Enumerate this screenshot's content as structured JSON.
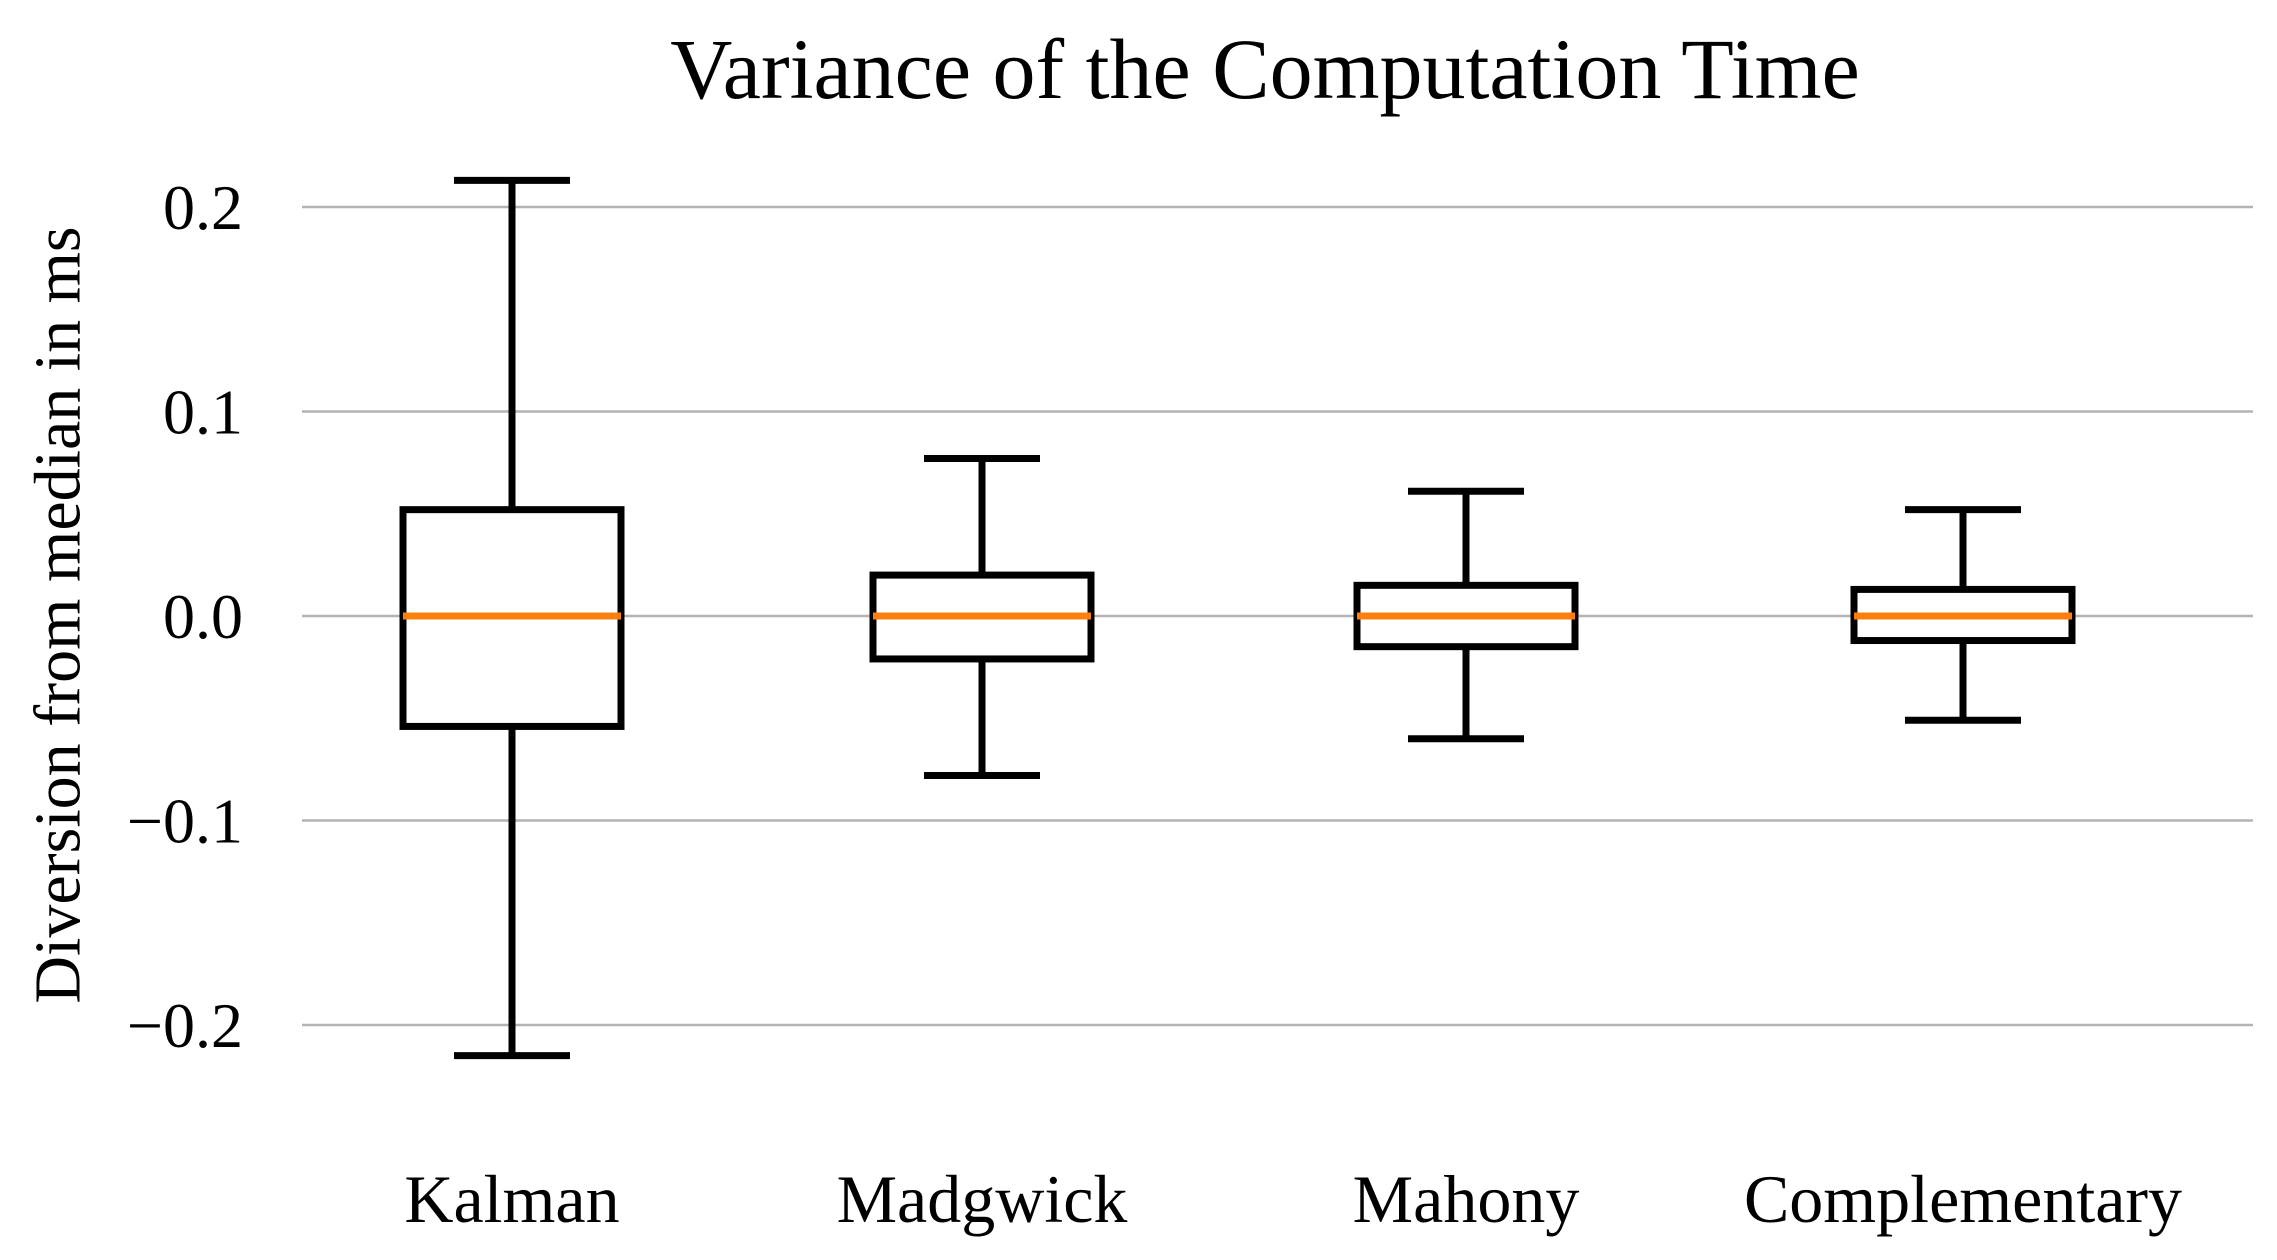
{
  "chart_data": {
    "type": "boxplot",
    "title": "Variance of the Computation Time",
    "xlabel": "",
    "ylabel": "Diversion from median in ms",
    "categories": [
      "Kalman",
      "Madgwick",
      "Mahony",
      "Complementary"
    ],
    "series": [
      {
        "name": "Kalman",
        "whisker_low": -0.215,
        "q1": -0.054,
        "median": 0.0,
        "q3": 0.052,
        "whisker_high": 0.213
      },
      {
        "name": "Madgwick",
        "whisker_low": -0.078,
        "q1": -0.021,
        "median": 0.0,
        "q3": 0.02,
        "whisker_high": 0.077
      },
      {
        "name": "Mahony",
        "whisker_low": -0.06,
        "q1": -0.015,
        "median": 0.0,
        "q3": 0.015,
        "whisker_high": 0.061
      },
      {
        "name": "Complementary",
        "whisker_low": -0.051,
        "q1": -0.012,
        "median": 0.0,
        "q3": 0.013,
        "whisker_high": 0.052
      }
    ],
    "yticks": [
      0.2,
      0.1,
      0.0,
      -0.1,
      -0.2
    ],
    "ytick_labels": [
      "0.2",
      "0.1",
      "0.0",
      "−0.1",
      "−0.2"
    ],
    "ylim": [
      -0.25,
      0.25
    ],
    "grid": "horizontal-only",
    "legend": "none",
    "colors": {
      "median_line": "#ff7f0e",
      "box_line": "#000000",
      "grid_line": "#b4b4b4",
      "background": "#ffffff",
      "text": "#000000"
    }
  }
}
